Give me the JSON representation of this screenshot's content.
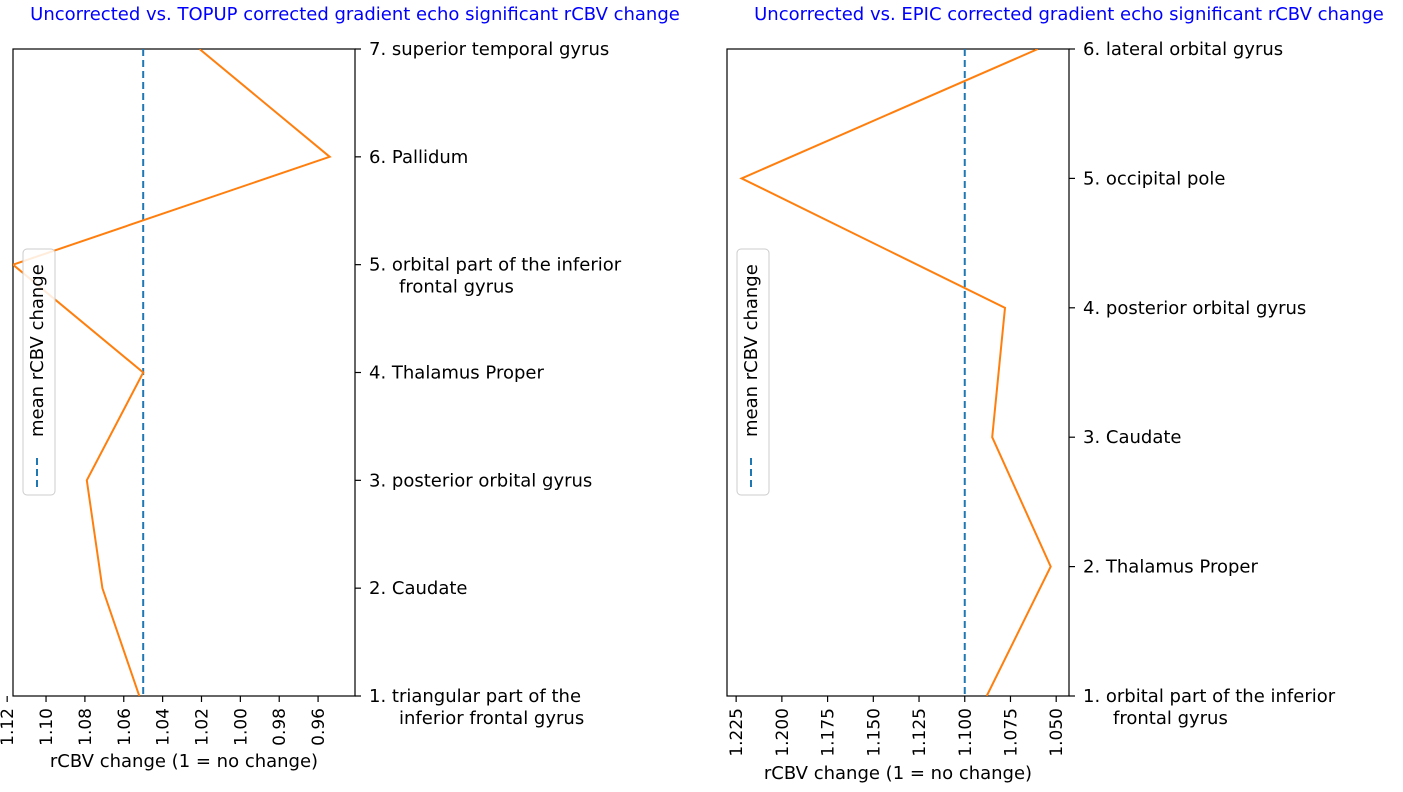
{
  "chart_data": [
    {
      "type": "line",
      "title": "Uncorrected vs. TOPUP corrected gradient echo significant rCBV change",
      "xlabel": "rCBV change (1 = no change)",
      "x_inverted": true,
      "xlim": [
        1.117,
        0.941
      ],
      "xticks": [
        "1.12",
        "1.10",
        "1.08",
        "1.06",
        "1.04",
        "1.02",
        "1.00",
        "0.98",
        "0.96"
      ],
      "ylim": [
        1,
        7
      ],
      "regions": [
        {
          "rank": 1,
          "label": "1.  triangular part of the",
          "label2": "inferior frontal gyrus",
          "value": 1.052
        },
        {
          "rank": 2,
          "label": "2.  Caudate",
          "label2": "",
          "value": 1.071
        },
        {
          "rank": 3,
          "label": "3.  posterior orbital gyrus",
          "label2": "",
          "value": 1.079
        },
        {
          "rank": 4,
          "label": "4.  Thalamus Proper",
          "label2": "",
          "value": 1.05
        },
        {
          "rank": 5,
          "label": "5.  orbital part of the inferior",
          "label2": "frontal gyrus",
          "value": 1.117
        },
        {
          "rank": 6,
          "label": "6.  Pallidum",
          "label2": "",
          "value": 0.954
        },
        {
          "rank": 7,
          "label": "7.  superior temporal gyrus",
          "label2": "",
          "value": 1.021
        }
      ],
      "mean_line": 1.05,
      "legend": {
        "label": "mean rCBV change",
        "placement": "center-left"
      },
      "series_color": "#ff7f0e",
      "mean_color": "#1f77b4"
    },
    {
      "type": "line",
      "title": "Uncorrected vs. EPIC corrected gradient echo significant rCBV change",
      "xlabel": "rCBV change (1 = no change)",
      "x_inverted": true,
      "xlim": [
        1.23,
        1.043
      ],
      "xticks": [
        "1.225",
        "1.200",
        "1.175",
        "1.150",
        "1.125",
        "1.100",
        "1.075",
        "1.050"
      ],
      "ylim": [
        1,
        6
      ],
      "regions": [
        {
          "rank": 1,
          "label": "1.  orbital part of the inferior",
          "label2": "frontal gyrus",
          "value": 1.088
        },
        {
          "rank": 2,
          "label": "2.  Thalamus Proper",
          "label2": "",
          "value": 1.053
        },
        {
          "rank": 3,
          "label": "3.  Caudate",
          "label2": "",
          "value": 1.085
        },
        {
          "rank": 4,
          "label": "4.  posterior orbital gyrus",
          "label2": "",
          "value": 1.078
        },
        {
          "rank": 5,
          "label": "5.  occipital pole",
          "label2": "",
          "value": 1.222
        },
        {
          "rank": 6,
          "label": "6.  lateral orbital gyrus",
          "label2": "",
          "value": 1.06
        }
      ],
      "mean_line": 1.1,
      "legend": {
        "label": "mean rCBV change",
        "placement": "center-left"
      },
      "series_color": "#ff7f0e",
      "mean_color": "#1f77b4"
    }
  ],
  "title_color": "#0000ff"
}
